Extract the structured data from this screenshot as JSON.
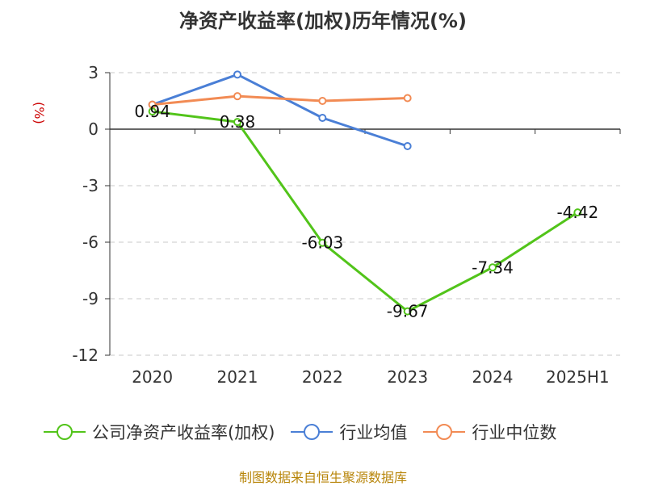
{
  "chart_data": {
    "type": "line",
    "title": "净资产收益率(加权)历年情况(%)",
    "ylabel": "(%)",
    "xlabel": "",
    "categories": [
      "2020",
      "2021",
      "2022",
      "2023",
      "2024",
      "2025H1"
    ],
    "ylim": [
      -12,
      3
    ],
    "yticks": [
      3,
      0,
      -3,
      -6,
      -9,
      -12
    ],
    "grid": true,
    "legend_position": "bottom",
    "series": [
      {
        "name": "公司净资产收益率(加权)",
        "color": "#52c41a",
        "values": [
          0.94,
          0.38,
          -6.03,
          -9.67,
          -7.34,
          -4.42
        ],
        "labels": [
          "0.94",
          "0.38",
          "-6.03",
          "-9.67",
          "-7.34",
          "-4.42"
        ]
      },
      {
        "name": "行业均值",
        "color": "#4a7fd6",
        "values": [
          1.3,
          2.9,
          0.6,
          -0.9,
          null,
          null
        ]
      },
      {
        "name": "行业中位数",
        "color": "#f28b54",
        "values": [
          1.3,
          1.75,
          1.5,
          1.65,
          null,
          null
        ]
      }
    ]
  },
  "footer": {
    "source": "制图数据来自恒生聚源数据库"
  }
}
